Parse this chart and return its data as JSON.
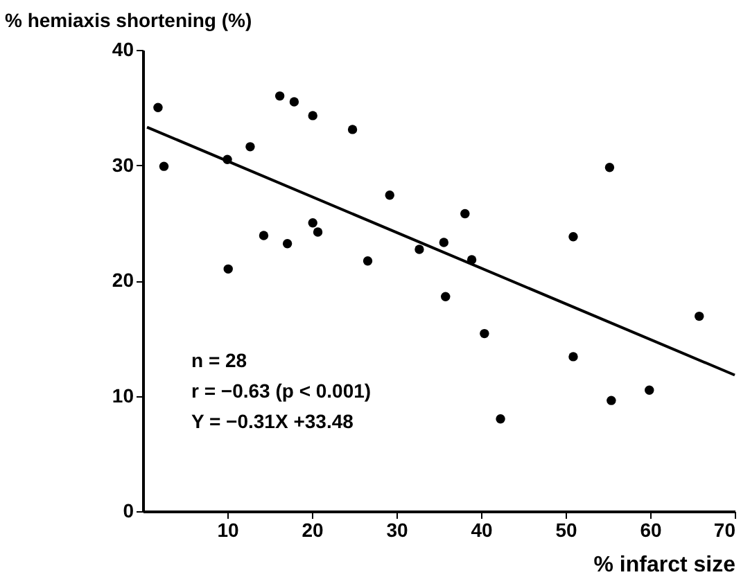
{
  "chart_data": {
    "type": "scatter",
    "xlabel": "% infarct size",
    "ylabel": "% hemiaxis shortening (%)",
    "xlim": [
      0,
      70
    ],
    "ylim": [
      0,
      40
    ],
    "xticks": [
      10,
      20,
      30,
      40,
      50,
      60,
      70
    ],
    "yticks": [
      0,
      10,
      20,
      30,
      40
    ],
    "grid": false,
    "marker": "circle",
    "series": [
      {
        "color": "#000000",
        "x": [
          1.8,
          2.5,
          10.0,
          10.1,
          12.7,
          14.3,
          16.2,
          17.9,
          17.1,
          20.1,
          20.1,
          20.7,
          24.8,
          29.2,
          26.6,
          32.7,
          35.6,
          38.1,
          38.9,
          35.8,
          40.4,
          50.9,
          55.2,
          65.8,
          42.3,
          50.9,
          55.4,
          59.9
        ],
        "values": [
          35.0,
          29.9,
          30.5,
          21.0,
          31.6,
          23.9,
          36.0,
          35.5,
          23.2,
          34.3,
          25.0,
          24.2,
          33.1,
          27.4,
          21.7,
          22.7,
          23.3,
          25.8,
          21.8,
          18.6,
          15.4,
          23.8,
          29.8,
          16.9,
          8.0,
          13.4,
          9.6,
          10.5
        ]
      },
      {
        "type": "line",
        "color": "#000000",
        "marker": "none",
        "line_style": "solid",
        "x": [
          0.5,
          70
        ],
        "values": [
          33.3,
          11.8
        ]
      }
    ],
    "annotations": [
      "n = 28",
      "r = −0.63 (p < 0.001)",
      "Y = −0.31X  +33.48"
    ]
  }
}
